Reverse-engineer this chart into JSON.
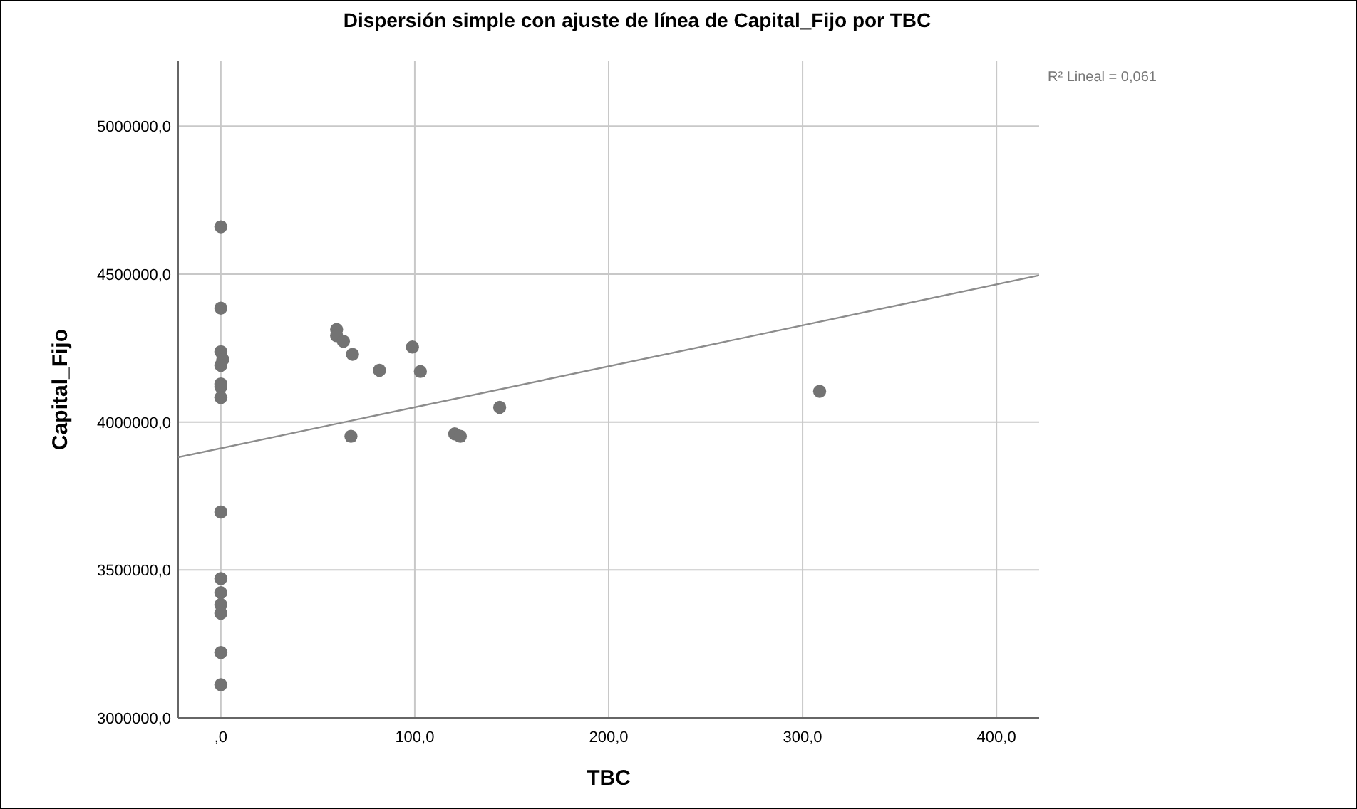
{
  "chart_data": {
    "type": "scatter",
    "title": "Dispersión simple con ajuste de línea de Capital_Fijo por TBC",
    "xlabel": "TBC",
    "ylabel": "Capital_Fijo",
    "xlim": [
      -22,
      422
    ],
    "ylim": [
      3000000,
      5220000
    ],
    "xticks": [
      {
        "value": 0,
        "label": ",0"
      },
      {
        "value": 100,
        "label": "100,0"
      },
      {
        "value": 200,
        "label": "200,0"
      },
      {
        "value": 300,
        "label": "300,0"
      },
      {
        "value": 400,
        "label": "400,0"
      }
    ],
    "yticks": [
      {
        "value": 3000000,
        "label": "3000000,0"
      },
      {
        "value": 3500000,
        "label": "3500000,0"
      },
      {
        "value": 4000000,
        "label": "4000000,0"
      },
      {
        "value": 4500000,
        "label": "4500000,0"
      },
      {
        "value": 5000000,
        "label": "5000000,0"
      }
    ],
    "grid": true,
    "marker": "circle",
    "annotations": [
      "R² Lineal = 0,061"
    ],
    "series": [
      {
        "color": "#737373",
        "x": [
          0,
          0,
          0,
          1,
          0,
          0,
          0,
          0,
          59.7,
          59.7,
          63.2,
          67.9,
          81.8,
          98.8,
          102.9,
          143.8,
          308.8,
          67.1,
          120.6,
          123.5,
          0,
          0,
          0,
          0,
          0,
          0,
          0
        ],
        "values": [
          4660000,
          4385000,
          4238000,
          4212000,
          4192000,
          4129000,
          4119000,
          4083000,
          4313000,
          4292000,
          4273000,
          4229000,
          4175000,
          4254000,
          4171000,
          4050000,
          4104000,
          3952000,
          3960000,
          3952000,
          3696000,
          3471000,
          3423000,
          3383000,
          3354000,
          3221000,
          3112000
        ]
      },
      {
        "type": "line",
        "color": "#8c8c8c",
        "marker": "none",
        "x": [
          -22,
          422
        ],
        "values": [
          3881000,
          4496000
        ]
      }
    ]
  }
}
